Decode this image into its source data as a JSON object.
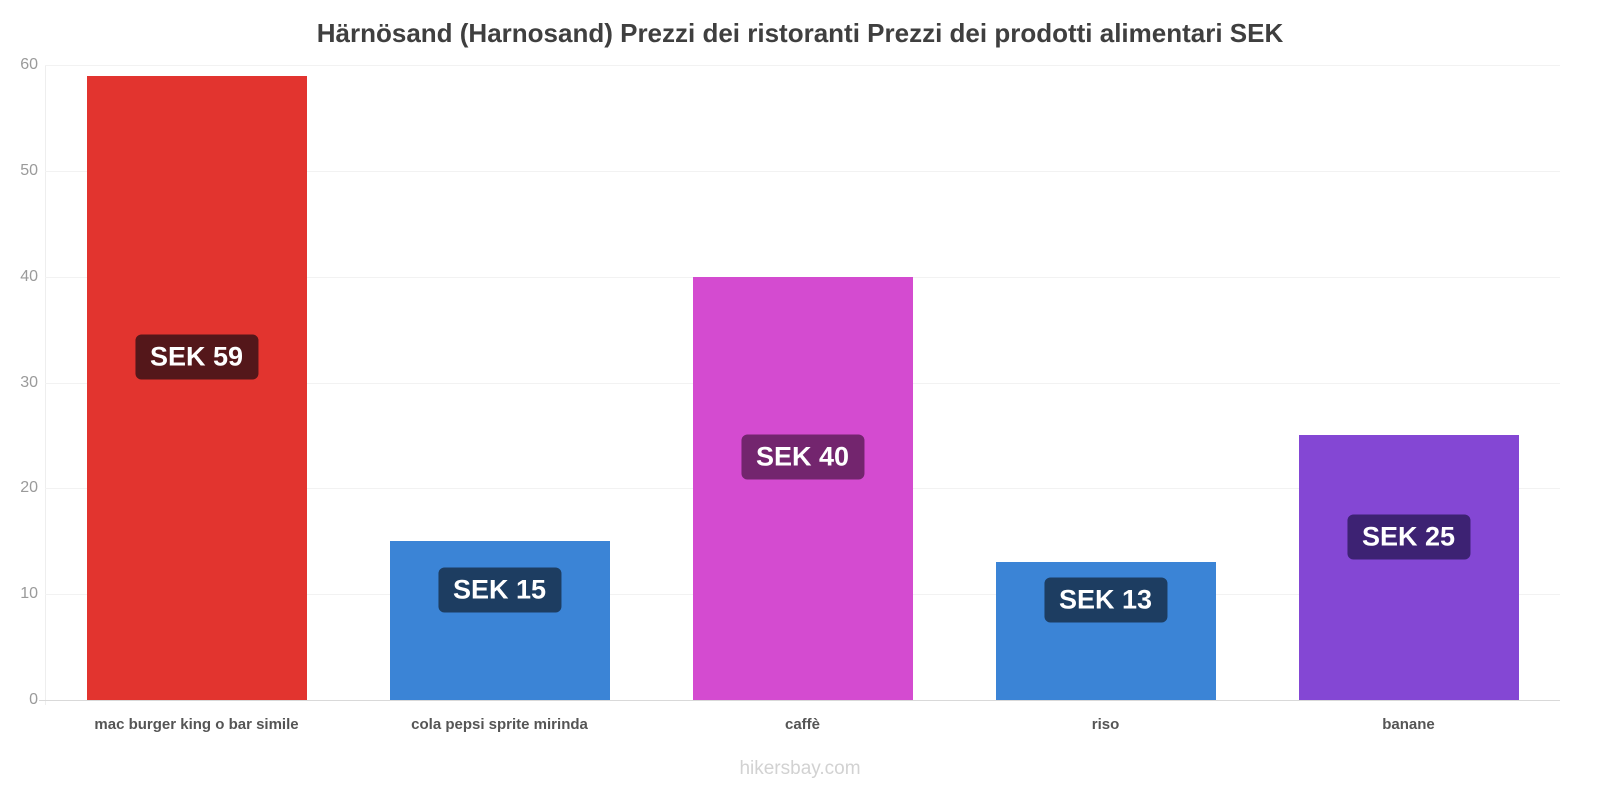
{
  "title": "Härnösand (Harnosand) Prezzi dei ristoranti Prezzi dei prodotti alimentari SEK",
  "watermark": "hikersbay.com",
  "chart_data": {
    "type": "bar",
    "title": "Härnösand (Harnosand) Prezzi dei ristoranti Prezzi dei prodotti alimentari SEK",
    "xlabel": "",
    "ylabel": "",
    "currency": "SEK",
    "categories": [
      "mac burger king o bar simile",
      "cola pepsi sprite mirinda",
      "caffè",
      "riso",
      "banane"
    ],
    "values": [
      59,
      15,
      40,
      13,
      25
    ],
    "bar_labels": [
      "SEK 59",
      "SEK 15",
      "SEK 40",
      "SEK 13",
      "SEK 25"
    ],
    "bar_colors": [
      "#e2342f",
      "#3b84d6",
      "#d44bd0",
      "#3b84d6",
      "#8447d4"
    ],
    "label_bg_colors": [
      "#54171a",
      "#1d3d61",
      "#73256e",
      "#1d3d61",
      "#3d2273"
    ],
    "ylim": [
      0,
      60
    ],
    "yticks": [
      0,
      10,
      20,
      30,
      40,
      50,
      60
    ],
    "grid": "horizontal",
    "legend": "none",
    "source_text": "hikersbay.com"
  }
}
